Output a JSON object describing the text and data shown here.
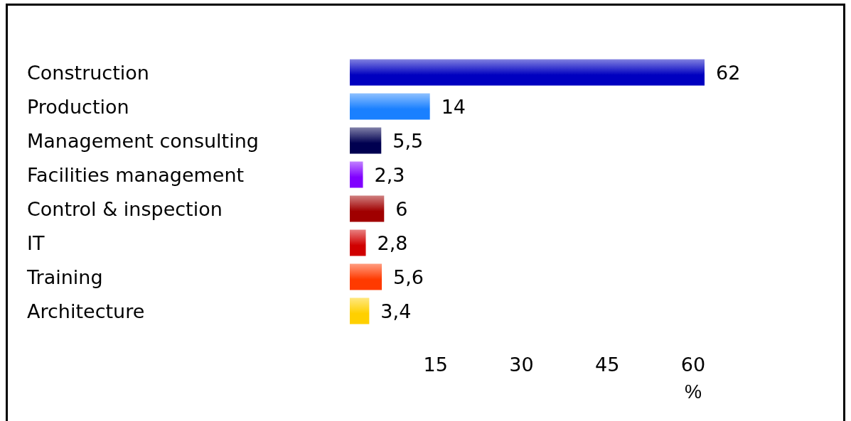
{
  "chart_data": {
    "type": "bar",
    "orientation": "horizontal",
    "xlabel": "%",
    "categories": [
      "Construction",
      "Production",
      "Management consulting",
      "Facilities management",
      "Control & inspection",
      "IT",
      "Training",
      "Architecture"
    ],
    "values": [
      62,
      14,
      5.5,
      2.3,
      6,
      2.8,
      5.6,
      3.4
    ],
    "value_labels": [
      "62",
      "14",
      "5,5",
      "2,3",
      "6",
      "2,8",
      "5,6",
      "3,4"
    ],
    "colors": [
      "#0000c0",
      "#1a80ff",
      "#000050",
      "#8000ff",
      "#a00000",
      "#d00000",
      "#ff3a00",
      "#ffd000"
    ],
    "xlim": [
      0,
      62
    ],
    "xticks": [
      15,
      30,
      45,
      60
    ]
  }
}
